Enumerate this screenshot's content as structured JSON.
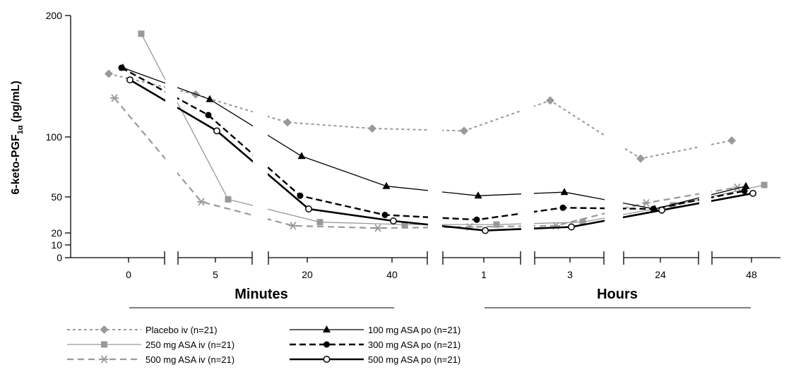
{
  "chart_data": {
    "type": "line",
    "ylabel": {
      "main": "6-keto-PGF",
      "sub": "1α",
      "unit": " (pg/mL)"
    },
    "y_ticks": [
      "0",
      "10",
      "20",
      "50",
      "100",
      "200"
    ],
    "x_ticks": [
      "0",
      "5",
      "20",
      "40",
      "1",
      "3",
      "24",
      "48"
    ],
    "sections": [
      {
        "label": "Minutes"
      },
      {
        "label": "Hours"
      }
    ],
    "series": [
      {
        "name": "Placebo iv (n=21)",
        "color": "#999999",
        "marker": "diamond",
        "line": "dotted",
        "points": [
          {
            "t": 0,
            "y": 152
          },
          {
            "t": 5,
            "y": 135
          },
          {
            "t": 20,
            "y": 112
          },
          {
            "t": 40,
            "y": 107
          },
          {
            "t": 1,
            "y": 105
          },
          {
            "t": 3,
            "y": 130
          },
          {
            "t": 24,
            "y": 82
          },
          {
            "t": 48,
            "y": 97
          }
        ]
      },
      {
        "name": "250 mg ASA iv (n=21)",
        "color": "#999999",
        "marker": "square",
        "line": "solid-thin",
        "points": [
          {
            "t": 0,
            "y": 185
          },
          {
            "t": 5,
            "y": 48
          },
          {
            "t": 20,
            "y": 29
          },
          {
            "t": 40,
            "y": 27
          },
          {
            "t": 1,
            "y": 27
          },
          {
            "t": 3,
            "y": 29
          },
          {
            "t": 24,
            "y": 43
          },
          {
            "t": 48,
            "y": 60
          }
        ]
      },
      {
        "name": "500 mg ASA iv (n=21)",
        "color": "#999999",
        "marker": "star",
        "line": "dashed",
        "points": [
          {
            "t": 0,
            "y": 132
          },
          {
            "t": 5,
            "y": 46
          },
          {
            "t": 20,
            "y": 26
          },
          {
            "t": 40,
            "y": 24
          },
          {
            "t": 1,
            "y": 25
          },
          {
            "t": 3,
            "y": 26
          },
          {
            "t": 24,
            "y": 45
          },
          {
            "t": 48,
            "y": 58
          }
        ]
      },
      {
        "name": "100 mg ASA po (n=21)",
        "color": "#000000",
        "marker": "triangle",
        "line": "solid-thin",
        "points": [
          {
            "t": 0,
            "y": 157
          },
          {
            "t": 5,
            "y": 131
          },
          {
            "t": 20,
            "y": 84
          },
          {
            "t": 40,
            "y": 59
          },
          {
            "t": 1,
            "y": 51
          },
          {
            "t": 3,
            "y": 54
          },
          {
            "t": 24,
            "y": 40
          },
          {
            "t": 48,
            "y": 59
          }
        ]
      },
      {
        "name": "300 mg ASA po (n=21)",
        "color": "#000000",
        "marker": "circle-filled",
        "line": "dashed-bold",
        "points": [
          {
            "t": 0,
            "y": 157
          },
          {
            "t": 5,
            "y": 118
          },
          {
            "t": 20,
            "y": 51
          },
          {
            "t": 40,
            "y": 35
          },
          {
            "t": 1,
            "y": 31
          },
          {
            "t": 3,
            "y": 41
          },
          {
            "t": 24,
            "y": 40
          },
          {
            "t": 48,
            "y": 55
          }
        ]
      },
      {
        "name": "500 mg ASA po (n=21)",
        "color": "#000000",
        "marker": "circle-open",
        "line": "solid-bold",
        "points": [
          {
            "t": 0,
            "y": 147
          },
          {
            "t": 5,
            "y": 105
          },
          {
            "t": 20,
            "y": 40
          },
          {
            "t": 40,
            "y": 30
          },
          {
            "t": 1,
            "y": 22
          },
          {
            "t": 3,
            "y": 25
          },
          {
            "t": 24,
            "y": 39
          },
          {
            "t": 48,
            "y": 53
          }
        ]
      }
    ],
    "legend_placement": "bottom-left",
    "grid": false
  }
}
